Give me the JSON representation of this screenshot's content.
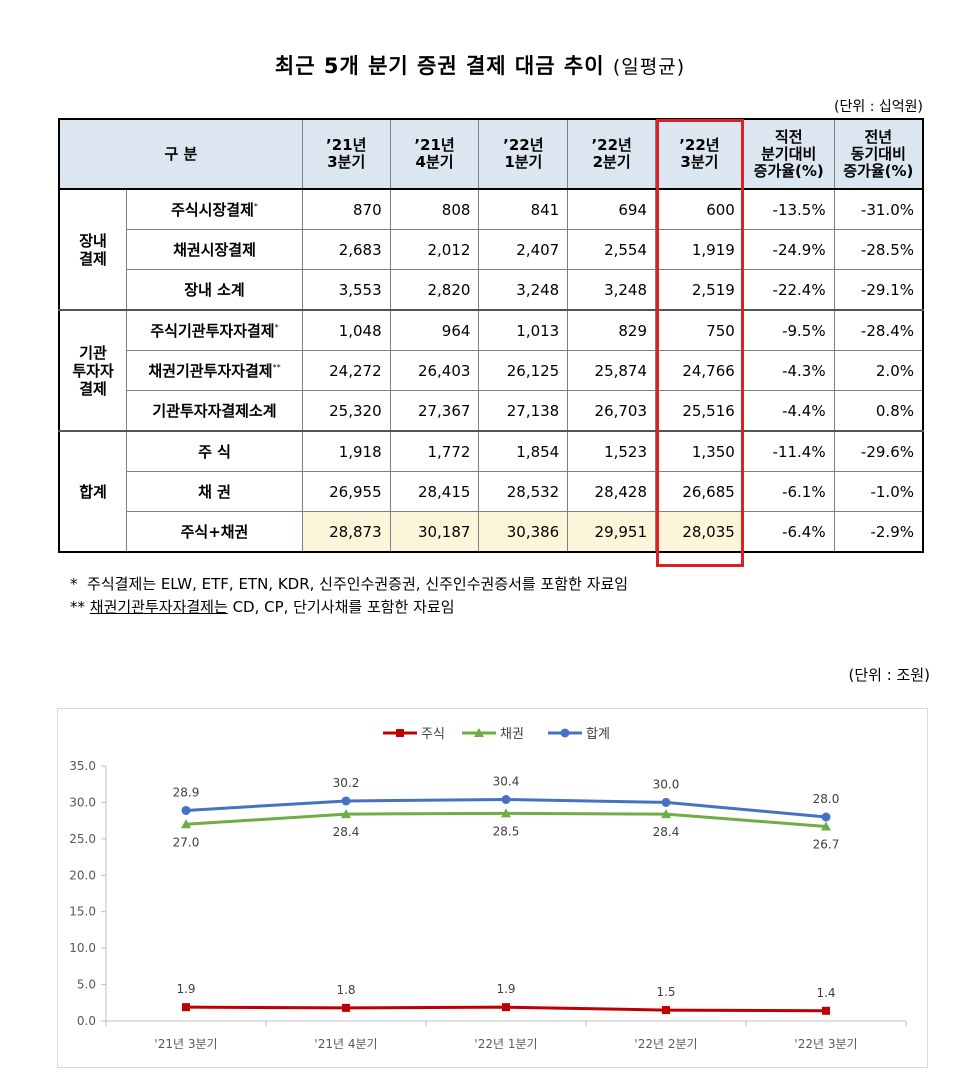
{
  "title": {
    "main": "최근 5개 분기 증권 결제 대금 추이",
    "sub": "(일평균)"
  },
  "table_unit": "(단위 : 십억원)",
  "table": {
    "header": {
      "category": "구   분",
      "periods": [
        [
          "’21년",
          "3분기"
        ],
        [
          "’21년",
          "4분기"
        ],
        [
          "’22년",
          "1분기"
        ],
        [
          "’22년",
          "2분기"
        ],
        [
          "’22년",
          "3분기"
        ]
      ],
      "qoq": [
        "직전",
        "분기대비",
        "증가율(%)"
      ],
      "yoy": [
        "전년",
        "동기대비",
        "증가율(%)"
      ]
    },
    "groups": [
      {
        "name": [
          "장내",
          "결제"
        ],
        "rows": [
          {
            "label": "주식시장결제",
            "mark": "*",
            "values": [
              "870",
              "808",
              "841",
              "694",
              "600"
            ],
            "qoq": "-13.5%",
            "yoy": "-31.0%"
          },
          {
            "label": "채권시장결제",
            "mark": "",
            "values": [
              "2,683",
              "2,012",
              "2,407",
              "2,554",
              "1,919"
            ],
            "qoq": "-24.9%",
            "yoy": "-28.5%"
          },
          {
            "label": "장내 소계",
            "mark": "",
            "values": [
              "3,553",
              "2,820",
              "3,248",
              "3,248",
              "2,519"
            ],
            "qoq": "-22.4%",
            "yoy": "-29.1%"
          }
        ]
      },
      {
        "name": [
          "기관",
          "투자자",
          "결제"
        ],
        "rows": [
          {
            "label": "주식기관투자자결제",
            "mark": "*",
            "values": [
              "1,048",
              "964",
              "1,013",
              "829",
              "750"
            ],
            "qoq": "-9.5%",
            "yoy": "-28.4%"
          },
          {
            "label": "채권기관투자자결제",
            "mark": "**",
            "values": [
              "24,272",
              "26,403",
              "26,125",
              "25,874",
              "24,766"
            ],
            "qoq": "-4.3%",
            "yoy": "2.0%"
          },
          {
            "label": "기관투자자결제소계",
            "mark": "",
            "values": [
              "25,320",
              "27,367",
              "27,138",
              "26,703",
              "25,516"
            ],
            "qoq": "-4.4%",
            "yoy": "0.8%"
          }
        ]
      },
      {
        "name": [
          "합계"
        ],
        "rows": [
          {
            "label": "주  식",
            "mark": "",
            "values": [
              "1,918",
              "1,772",
              "1,854",
              "1,523",
              "1,350"
            ],
            "qoq": "-11.4%",
            "yoy": "-29.6%"
          },
          {
            "label": "채  권",
            "mark": "",
            "values": [
              "26,955",
              "28,415",
              "28,532",
              "28,428",
              "26,685"
            ],
            "qoq": "-6.1%",
            "yoy": "-1.0%"
          },
          {
            "label": "주식+채권",
            "mark": "",
            "values": [
              "28,873",
              "30,187",
              "30,386",
              "29,951",
              "28,035"
            ],
            "qoq": "-6.4%",
            "yoy": "-2.9%",
            "highlight": true
          }
        ]
      }
    ]
  },
  "notes": [
    {
      "prefix": "*",
      "underlined": "",
      "text": "주식결제는 ELW, ETF, ETN, KDR, 신주인수권증권, 신주인수권증서를 포함한 자료임"
    },
    {
      "prefix": "**",
      "underlined": "채권기관투자자결제는",
      "text": " CD, CP, 단기사채를 포함한 자료임"
    }
  ],
  "chart_unit": "(단위 : 조원)",
  "colors": {
    "stock": "#c00000",
    "bond": "#70ad47",
    "total": "#4472c4",
    "highlight_box": "#e02020",
    "header_bg": "#dce6f1",
    "highlight_bg": "#fdf5d9"
  },
  "chart_data": {
    "type": "line",
    "categories": [
      "'21년 3분기",
      "'21년 4분기",
      "'22년 1분기",
      "'22년 2분기",
      "'22년 3분기"
    ],
    "series": [
      {
        "name": "주식",
        "values": [
          1.9,
          1.8,
          1.9,
          1.5,
          1.4
        ],
        "labels": [
          "1.9",
          "1.8",
          "1.9",
          "1.5",
          "1.4"
        ],
        "color": "#c00000",
        "marker": "square",
        "label_pos": "above"
      },
      {
        "name": "채권",
        "values": [
          27.0,
          28.4,
          28.5,
          28.4,
          26.7
        ],
        "labels": [
          "27.0",
          "28.4",
          "28.5",
          "28.4",
          "26.7"
        ],
        "color": "#70ad47",
        "marker": "triangle",
        "label_pos": "below"
      },
      {
        "name": "합계",
        "values": [
          28.9,
          30.2,
          30.4,
          30.0,
          28.0
        ],
        "labels": [
          "28.9",
          "30.2",
          "30.4",
          "30.0",
          "28.0"
        ],
        "color": "#4472c4",
        "marker": "circle",
        "label_pos": "above"
      }
    ],
    "ylim": [
      0,
      35
    ],
    "yticks": [
      "0.0",
      "5.0",
      "10.0",
      "15.0",
      "20.0",
      "25.0",
      "30.0",
      "35.0"
    ],
    "legend": "top-center",
    "grid": false
  }
}
